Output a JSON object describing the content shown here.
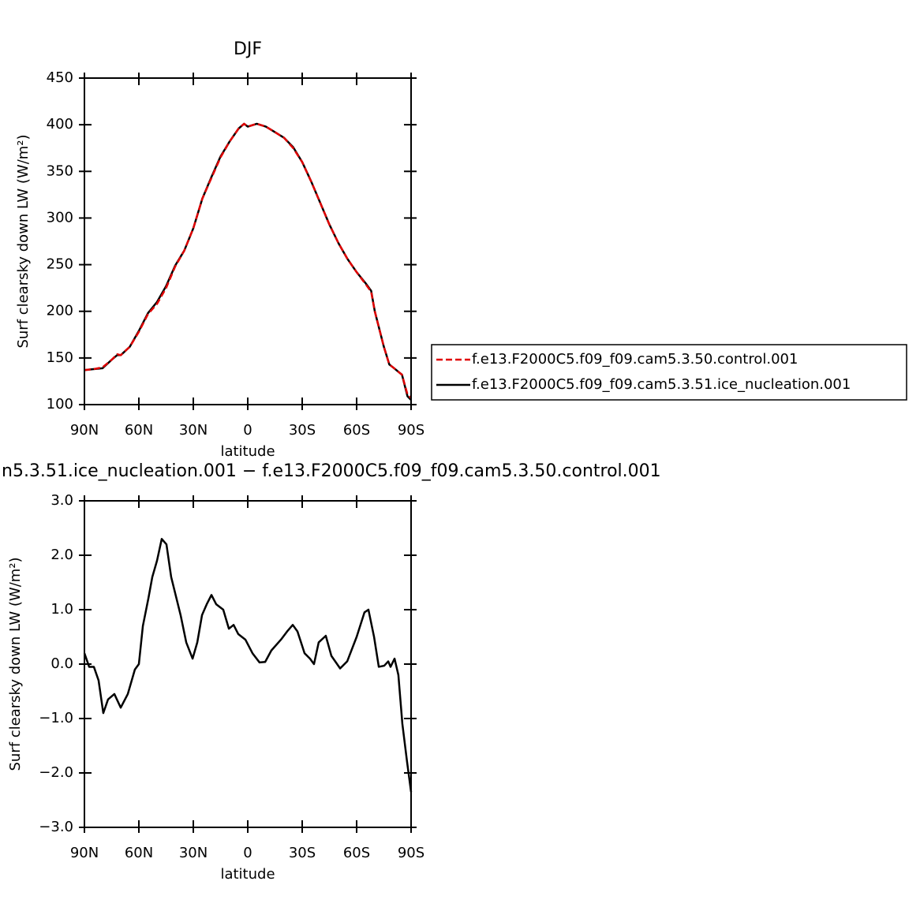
{
  "chart_data": [
    {
      "type": "line",
      "title": "DJF",
      "x_label": "latitude",
      "y_label": "Surf clearsky down LW (W/m²)",
      "x": [
        90,
        85,
        80,
        75,
        72,
        70,
        65,
        60,
        55,
        50,
        45,
        40,
        35,
        30,
        25,
        20,
        15,
        10,
        5,
        2,
        0,
        -5,
        -10,
        -15,
        -20,
        -25,
        -30,
        -35,
        -40,
        -45,
        -50,
        -55,
        -60,
        -65,
        -68,
        -70,
        -75,
        -78,
        -80,
        -85,
        -88,
        -90
      ],
      "series": [
        {
          "name": "f.e13.F2000C5.f09_f09.cam5.3.50.control.001",
          "color": "#e00000",
          "dashed": true,
          "values": [
            137,
            138,
            140,
            148,
            154,
            153,
            162,
            178,
            197,
            208,
            225,
            248,
            265,
            289,
            321,
            343,
            365,
            382,
            396,
            401,
            398,
            401,
            398,
            392,
            386,
            375,
            360,
            339,
            316,
            293,
            273,
            256,
            242,
            229,
            221,
            200,
            162,
            143,
            140,
            132,
            111,
            107
          ]
        },
        {
          "name": "f.e13.F2000C5.f09_f09.cam5.3.51.ice_nucleation.001",
          "color": "#000000",
          "dashed": false,
          "values": [
            137,
            138,
            139,
            148,
            153,
            153,
            162,
            179,
            198,
            210,
            227,
            249,
            265,
            289,
            321,
            344,
            366,
            382,
            396,
            401,
            398,
            401,
            398,
            392,
            386,
            376,
            360,
            339,
            316,
            293,
            273,
            256,
            242,
            230,
            222,
            200,
            162,
            143,
            140,
            132,
            109,
            105
          ]
        }
      ],
      "xlim": [
        90,
        -90
      ],
      "xticks": [
        {
          "value": 90,
          "label": "90N"
        },
        {
          "value": 60,
          "label": "60N"
        },
        {
          "value": 30,
          "label": "30N"
        },
        0,
        {
          "value": -30,
          "label": "30S"
        },
        {
          "value": -60,
          "label": "60S"
        },
        {
          "value": -90,
          "label": "90S"
        }
      ],
      "ylim": [
        100,
        450
      ],
      "yticks": [
        100,
        150,
        200,
        250,
        300,
        350,
        400,
        450
      ],
      "legend": "right"
    },
    {
      "type": "line",
      "title": "n5.3.51.ice_nucleation.001  −  f.e13.F2000C5.f09_f09.cam5.3.50.control.001",
      "x_label": "latitude",
      "y_label": "Surf clearsky down LW (W/m²)",
      "x": [
        90,
        87.4,
        84.8,
        82.2,
        79.6,
        77.0,
        73.5,
        70.0,
        66.1,
        62.2,
        60.0,
        57.8,
        54.8,
        52.6,
        50.0,
        47.4,
        44.8,
        42.2,
        37.0,
        33.9,
        30.4,
        27.8,
        25.2,
        22.6,
        20.0,
        17.4,
        13.5,
        10.4,
        7.8,
        5.2,
        1.3,
        -2.6,
        -6.5,
        -9.6,
        -13.0,
        -18.3,
        -21.7,
        -24.8,
        -27.4,
        -31.3,
        -34.3,
        -36.5,
        -39.1,
        -43.0,
        -46.1,
        -50.9,
        -54.8,
        -60.0,
        -64.3,
        -66.5,
        -69.6,
        -72.2,
        -75.2,
        -77.4,
        -78.7,
        -80.9,
        -83.0,
        -85.2,
        -87.8,
        -90
      ],
      "series": [
        {
          "name": null,
          "color": "#000000",
          "dashed": false,
          "values": [
            0.2,
            -0.05,
            -0.05,
            -0.3,
            -0.9,
            -0.65,
            -0.55,
            -0.8,
            -0.55,
            -0.1,
            0.0,
            0.7,
            1.2,
            1.6,
            1.9,
            2.3,
            2.2,
            1.6,
            0.9,
            0.4,
            0.1,
            0.4,
            0.9,
            1.1,
            1.27,
            1.1,
            1.0,
            0.65,
            0.72,
            0.55,
            0.45,
            0.2,
            0.03,
            0.04,
            0.25,
            0.45,
            0.6,
            0.72,
            0.6,
            0.2,
            0.1,
            0.0,
            0.4,
            0.52,
            0.15,
            -0.08,
            0.05,
            0.5,
            0.95,
            1.0,
            0.5,
            -0.05,
            -0.03,
            0.05,
            -0.05,
            0.1,
            -0.2,
            -1.1,
            -1.8,
            -2.35
          ]
        }
      ],
      "xlim": [
        90,
        -90
      ],
      "xticks": [
        {
          "value": 90,
          "label": "90N"
        },
        {
          "value": 60,
          "label": "60N"
        },
        {
          "value": 30,
          "label": "30N"
        },
        0,
        {
          "value": -30,
          "label": "30S"
        },
        {
          "value": -60,
          "label": "60S"
        },
        {
          "value": -90,
          "label": "90S"
        }
      ],
      "ylim": [
        -3,
        3
      ],
      "yticks": [
        {
          "value": -3,
          "label": "−3.0"
        },
        {
          "value": -2,
          "label": "−2.0"
        },
        {
          "value": -1,
          "label": "−1.0"
        },
        {
          "value": 0,
          "label": "0.0"
        },
        {
          "value": 1,
          "label": "1.0"
        },
        {
          "value": 2,
          "label": "2.0"
        },
        {
          "value": 3,
          "label": "3.0"
        }
      ]
    }
  ]
}
